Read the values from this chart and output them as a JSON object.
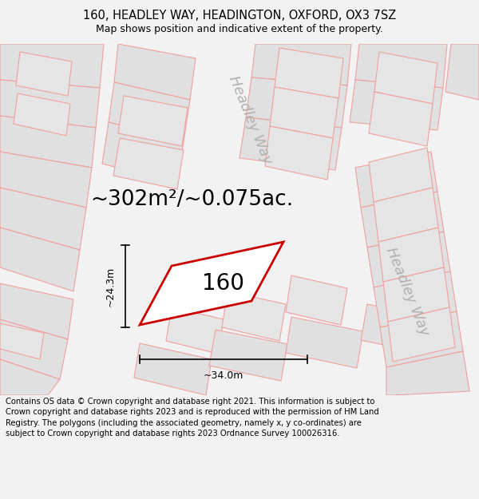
{
  "title": "160, HEADLEY WAY, HEADINGTON, OXFORD, OX3 7SZ",
  "subtitle": "Map shows position and indicative extent of the property.",
  "area_text": "~302m²/~0.075ac.",
  "label_160": "160",
  "dim_width": "~34.0m",
  "dim_height": "~24.3m",
  "footer": "Contains OS data © Crown copyright and database right 2021. This information is subject to Crown copyright and database rights 2023 and is reproduced with the permission of HM Land Registry. The polygons (including the associated geometry, namely x, y co-ordinates) are subject to Crown copyright and database rights 2023 Ordnance Survey 100026316.",
  "bg_color": "#f2f2f2",
  "map_bg": "#ffffff",
  "plot_fill": "#ffffff",
  "plot_edge": "#cc0000",
  "road_label_color": "#b0b0b0",
  "road_line_color": "#f0a0a0",
  "neighbor_fill": "#e0e0e0",
  "neighbor_edge": "#f0a0a0",
  "title_fontsize": 10.5,
  "subtitle_fontsize": 9,
  "area_fontsize": 19,
  "label_fontsize": 20,
  "footer_fontsize": 7.2,
  "road_label_fontsize": 13,
  "dim_fontsize": 9
}
